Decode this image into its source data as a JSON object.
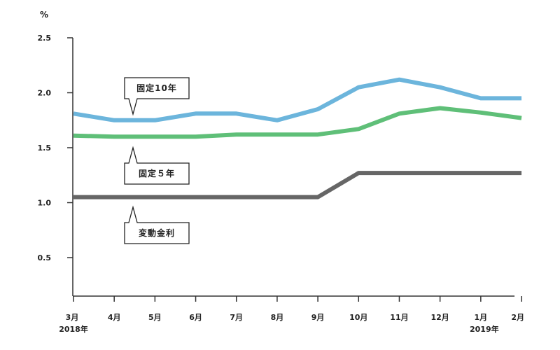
{
  "chart_data": {
    "type": "line",
    "unit_label": "%",
    "categories": [
      "3月",
      "4月",
      "5月",
      "6月",
      "7月",
      "8月",
      "9月",
      "10月",
      "11月",
      "12月",
      "1月",
      "2月"
    ],
    "year_labels": [
      {
        "category_index": 0,
        "label": "2018年"
      },
      {
        "category_index": 10,
        "label": "2019年"
      }
    ],
    "y_ticks": [
      "0.5",
      "1.0",
      "1.5",
      "2.0",
      "2.5"
    ],
    "ylim": [
      0.3,
      2.5
    ],
    "grid": false,
    "series": [
      {
        "name": "固定10年",
        "color": "#6cb5dc",
        "values": [
          1.81,
          1.75,
          1.75,
          1.81,
          1.81,
          1.75,
          1.85,
          2.05,
          2.12,
          2.05,
          1.95,
          1.95
        ]
      },
      {
        "name": "固定５年",
        "color": "#5fbf78",
        "values": [
          1.61,
          1.6,
          1.6,
          1.6,
          1.62,
          1.62,
          1.62,
          1.67,
          1.81,
          1.86,
          1.82,
          1.77
        ]
      },
      {
        "name": "変動金利",
        "color": "#666666",
        "values": [
          1.05,
          1.05,
          1.05,
          1.05,
          1.05,
          1.05,
          1.05,
          1.27,
          1.27,
          1.27,
          1.27,
          1.27
        ]
      }
    ]
  }
}
